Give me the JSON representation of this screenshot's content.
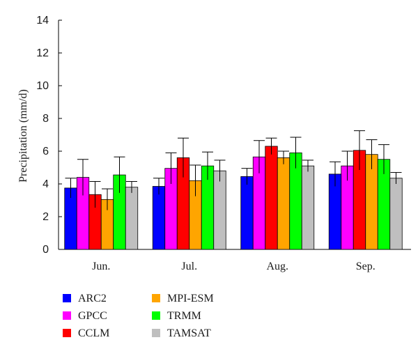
{
  "chart_data": {
    "type": "bar",
    "ylabel": "Precipitation (mm/d)",
    "xlabel": "",
    "ylim": [
      0,
      14
    ],
    "yticks": [
      "0",
      "2",
      "4",
      "6",
      "8",
      "10",
      "12",
      "14"
    ],
    "categories": [
      "Jun.",
      "Jul.",
      "Aug.",
      "Sep."
    ],
    "series": [
      {
        "name": "ARC2",
        "color": "#0000ff",
        "values": [
          3.75,
          3.85,
          4.45,
          4.6
        ],
        "errors": [
          0.6,
          0.5,
          0.5,
          0.75
        ]
      },
      {
        "name": "GPCC",
        "color": "#ff00ff",
        "values": [
          4.4,
          4.95,
          5.65,
          5.1
        ],
        "errors": [
          1.1,
          0.95,
          1.0,
          0.9
        ]
      },
      {
        "name": "CCLM",
        "color": "#ff0000",
        "values": [
          3.35,
          5.6,
          6.3,
          6.05
        ],
        "errors": [
          0.8,
          1.2,
          0.5,
          1.2
        ]
      },
      {
        "name": "MPI-ESM",
        "color": "#ffa500",
        "values": [
          3.05,
          4.2,
          5.6,
          5.8
        ],
        "errors": [
          0.65,
          0.95,
          0.4,
          0.9
        ]
      },
      {
        "name": "TRMM",
        "color": "#00ff00",
        "values": [
          4.55,
          5.1,
          5.9,
          5.5
        ],
        "errors": [
          1.1,
          0.85,
          0.95,
          0.9
        ]
      },
      {
        "name": "TAMSAT",
        "color": "#bfbfbf",
        "values": [
          3.8,
          4.8,
          5.1,
          4.35
        ],
        "errors": [
          0.35,
          0.65,
          0.35,
          0.35
        ]
      }
    ],
    "grid": false,
    "legend_position": "bottom-left"
  }
}
